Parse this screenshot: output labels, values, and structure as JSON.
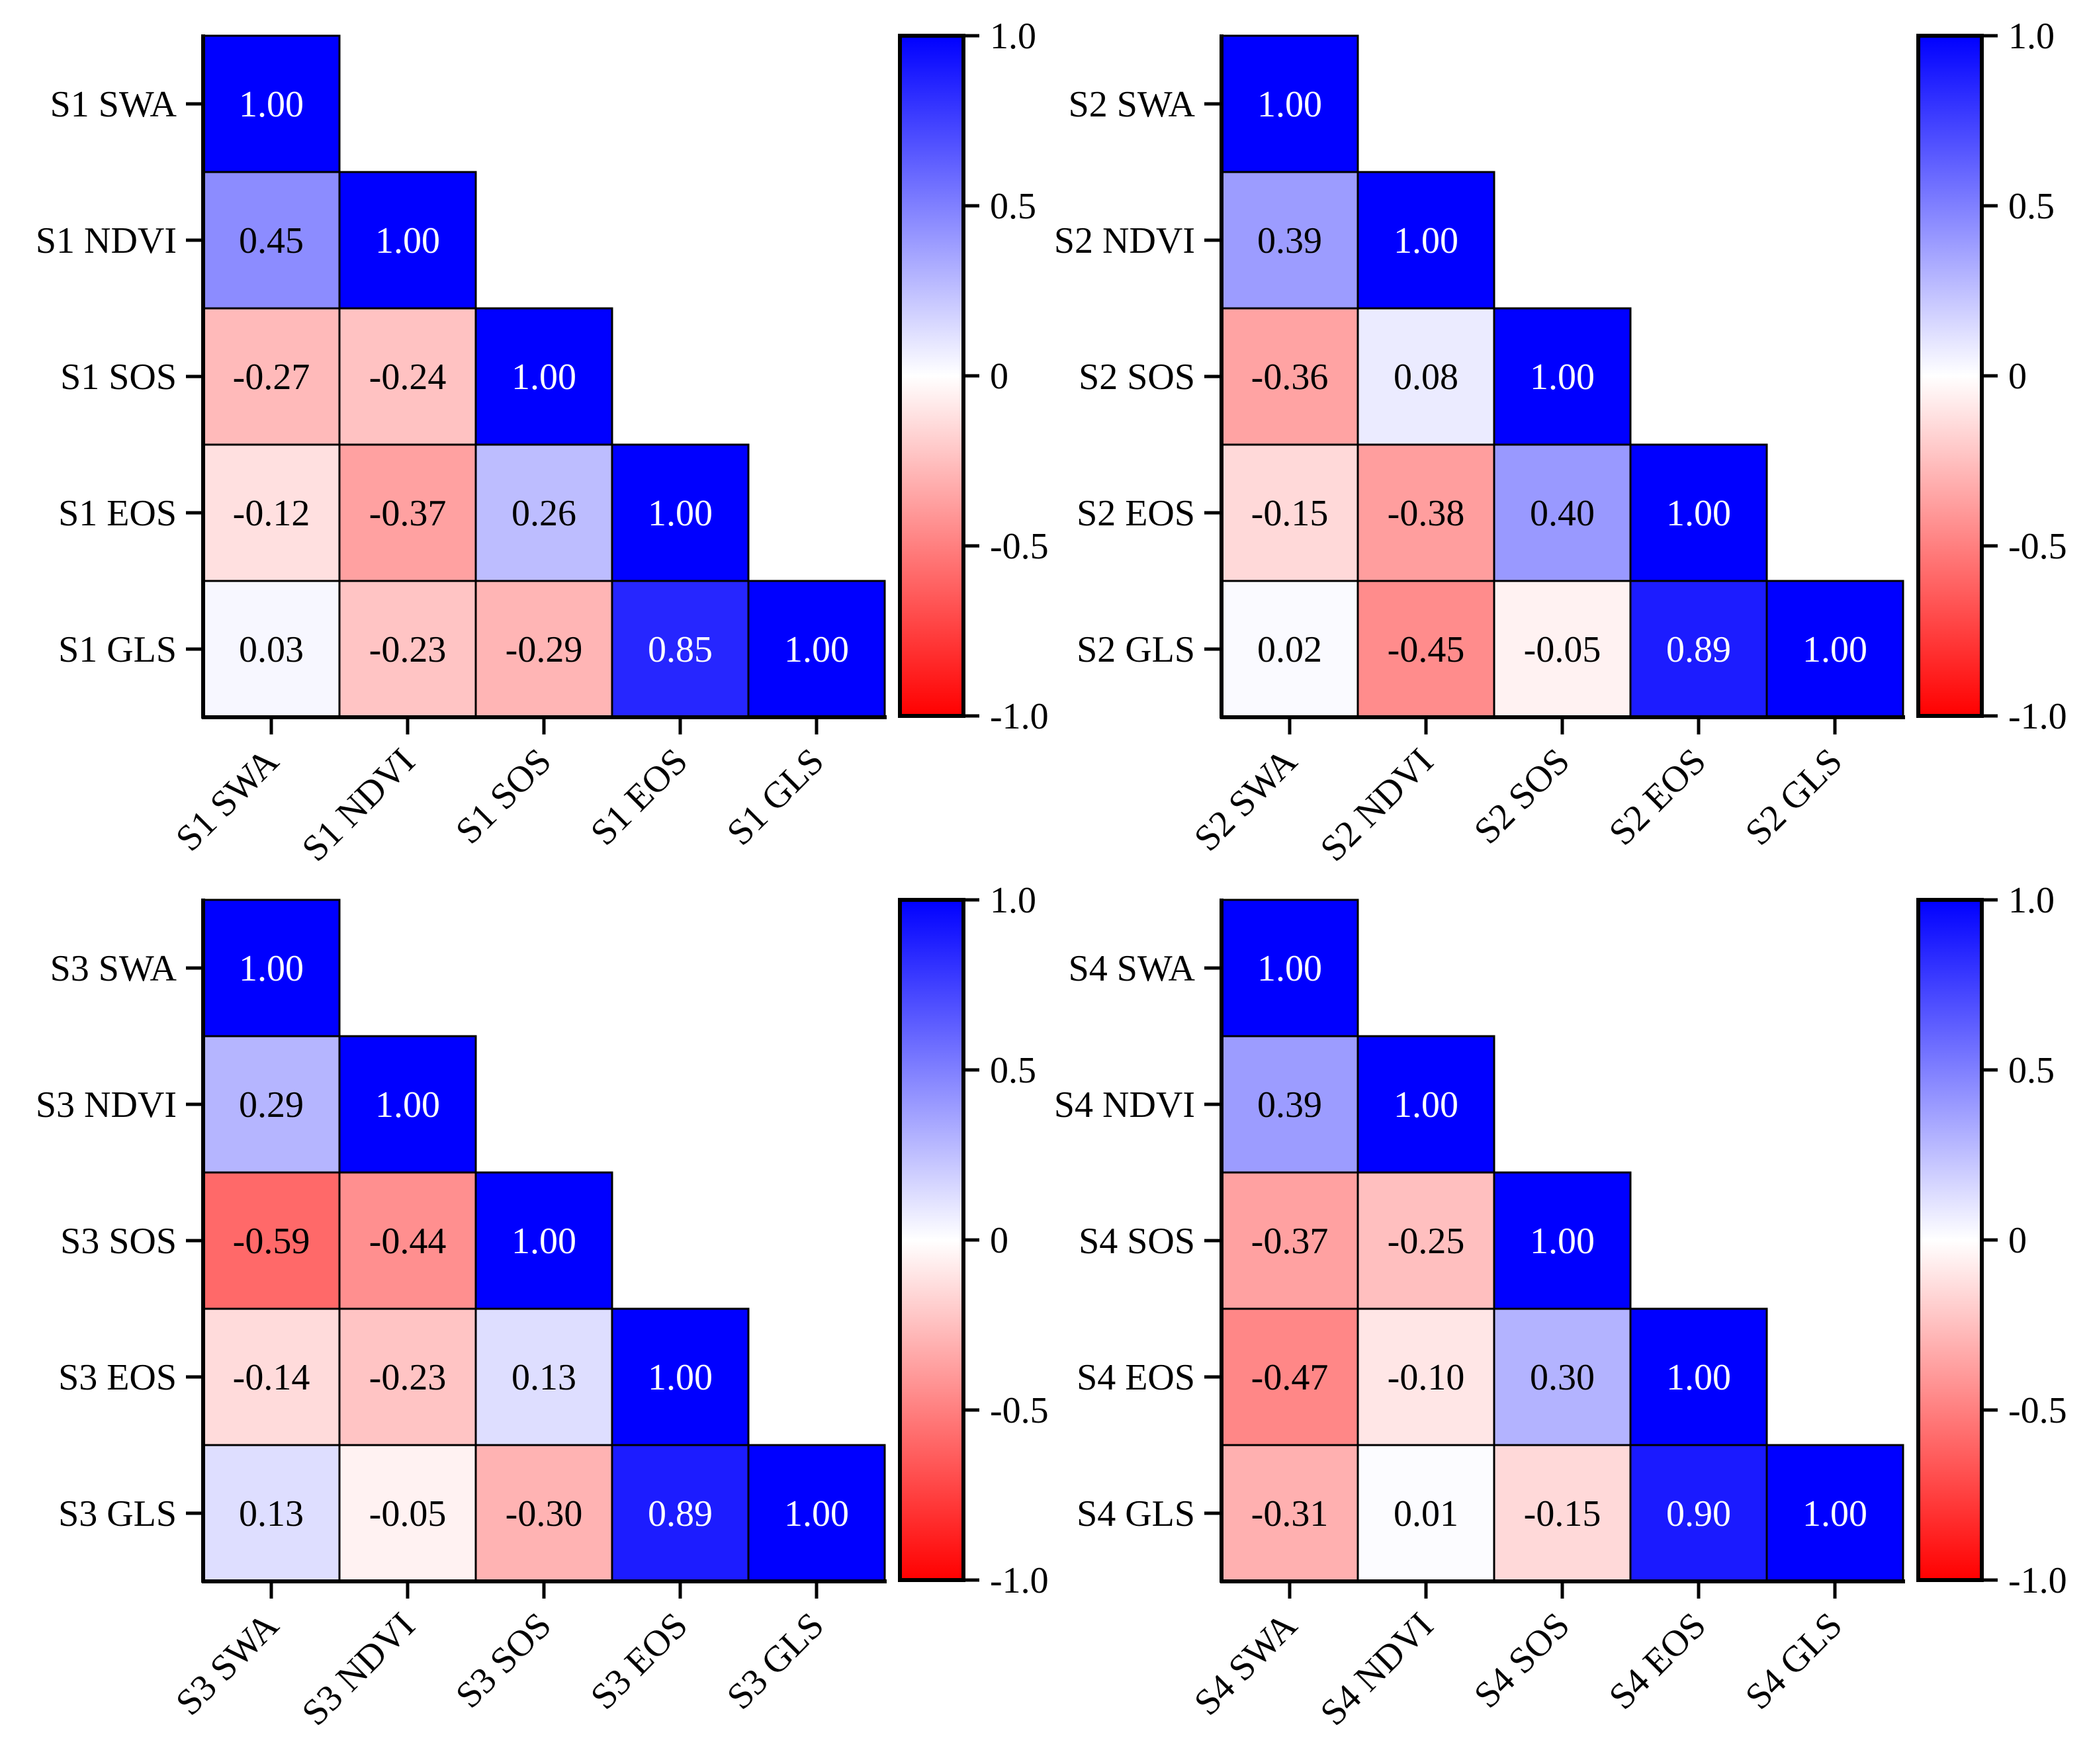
{
  "chart_data": [
    {
      "type": "heatmap",
      "panel": "S1",
      "labels": [
        "S1 SWA",
        "S1 NDVI",
        "S1 SOS",
        "S1 EOS",
        "S1 GLS"
      ],
      "matrix": [
        [
          1.0
        ],
        [
          0.45,
          1.0
        ],
        [
          -0.27,
          -0.24,
          1.0
        ],
        [
          -0.12,
          -0.37,
          0.26,
          1.0
        ],
        [
          0.03,
          -0.23,
          -0.29,
          0.85,
          1.0
        ]
      ],
      "colorbar": {
        "min": -1.0,
        "max": 1.0,
        "ticks": [
          "1.0",
          "0.5",
          "0",
          "-0.5",
          "-1.0"
        ]
      }
    },
    {
      "type": "heatmap",
      "panel": "S2",
      "labels": [
        "S2 SWA",
        "S2 NDVI",
        "S2 SOS",
        "S2 EOS",
        "S2 GLS"
      ],
      "matrix": [
        [
          1.0
        ],
        [
          0.39,
          1.0
        ],
        [
          -0.36,
          0.08,
          1.0
        ],
        [
          -0.15,
          -0.38,
          0.4,
          1.0
        ],
        [
          0.02,
          -0.45,
          -0.05,
          0.89,
          1.0
        ]
      ],
      "colorbar": {
        "min": -1.0,
        "max": 1.0,
        "ticks": [
          "1.0",
          "0.5",
          "0",
          "-0.5",
          "-1.0"
        ]
      }
    },
    {
      "type": "heatmap",
      "panel": "S3",
      "labels": [
        "S3 SWA",
        "S3 NDVI",
        "S3 SOS",
        "S3 EOS",
        "S3 GLS"
      ],
      "matrix": [
        [
          1.0
        ],
        [
          0.29,
          1.0
        ],
        [
          -0.59,
          -0.44,
          1.0
        ],
        [
          -0.14,
          -0.23,
          0.13,
          1.0
        ],
        [
          0.13,
          -0.05,
          -0.3,
          0.89,
          1.0
        ]
      ],
      "colorbar": {
        "min": -1.0,
        "max": 1.0,
        "ticks": [
          "1.0",
          "0.5",
          "0",
          "-0.5",
          "-1.0"
        ]
      }
    },
    {
      "type": "heatmap",
      "panel": "S4",
      "labels": [
        "S4 SWA",
        "S4 NDVI",
        "S4 SOS",
        "S4 EOS",
        "S4 GLS"
      ],
      "matrix": [
        [
          1.0
        ],
        [
          0.39,
          1.0
        ],
        [
          -0.37,
          -0.25,
          1.0
        ],
        [
          -0.47,
          -0.1,
          0.3,
          1.0
        ],
        [
          -0.31,
          0.01,
          -0.15,
          0.9,
          1.0
        ]
      ],
      "colorbar": {
        "min": -1.0,
        "max": 1.0,
        "ticks": [
          "1.0",
          "0.5",
          "0",
          "-0.5",
          "-1.0"
        ]
      }
    }
  ],
  "colors": {
    "positive": "#0000ff",
    "zero": "#ffffff",
    "negative": "#ff0000",
    "axis": "#000000"
  }
}
